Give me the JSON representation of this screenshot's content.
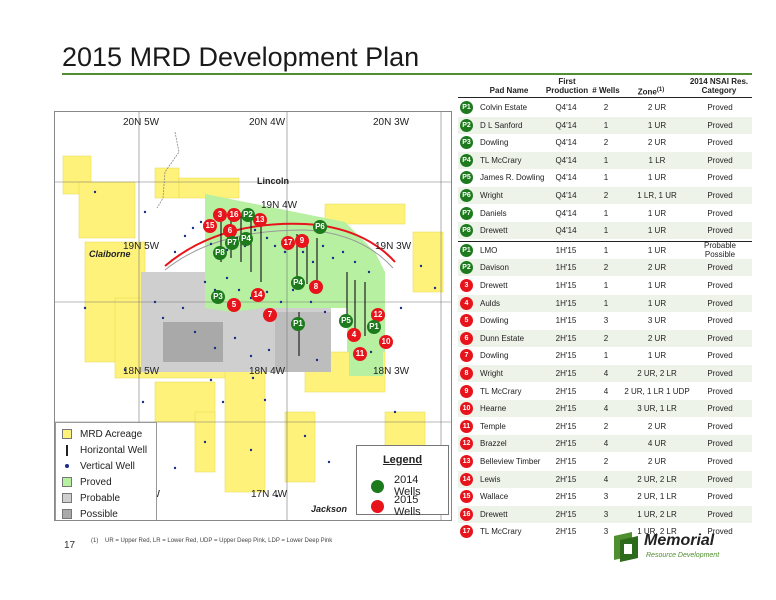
{
  "slide": {
    "title": "2015 MRD Development Plan",
    "page_number": "17",
    "footnote_marker": "(1)",
    "footnote": "UR = Upper Red, LR = Lower Red, UDP = Upper Deep Pink, LDP = Lower Deep Pink",
    "logo_name": "Memorial",
    "logo_sub": "Resource Development"
  },
  "map": {
    "township_labels": [
      "20N 5W",
      "20N 4W",
      "20N 3W",
      "19N 4W",
      "19N 5W",
      "19N 3W",
      "18N 5W",
      "18N 4W",
      "18N 3W",
      "5W",
      "17N 4W"
    ],
    "place_labels": [
      "Lincoln",
      "Claiborne",
      "Jackson"
    ],
    "legend_items": [
      "MRD Acreage",
      "Horizontal Well",
      "Vertical Well",
      "Proved",
      "Probable",
      "Possible"
    ],
    "well_legend_title": "Legend",
    "well_legend_items": [
      "2014 Wells",
      "2015 Wells"
    ],
    "colors": {
      "acreage": "#fff27a",
      "proved": "#b6f0a0",
      "probable": "#cfcfcf",
      "possible": "#a9a9a9",
      "red": "#e8141b",
      "green": "#1d7a1d"
    },
    "red_markers": [
      "3",
      "16",
      "13",
      "15",
      "6",
      "17",
      "9",
      "14",
      "5",
      "8",
      "7",
      "12",
      "4",
      "10",
      "11"
    ],
    "green_markers": [
      "P2",
      "P6",
      "P7",
      "P4",
      "P8",
      "P1",
      "P3",
      "P4",
      "P5",
      "P1",
      "P5"
    ]
  },
  "table": {
    "headers": {
      "pad_name": "Pad Name",
      "first_production": "First Production",
      "num_wells": "# Wells",
      "zone": "Zone",
      "zone_sup": "(1)",
      "category": "2014 NSAI Res. Category"
    },
    "rows_2014": [
      {
        "id": "P1",
        "name": "Colvin Estate",
        "fp": "Q4'14",
        "wells": "2",
        "zone": "2 UR",
        "cat": "Proved"
      },
      {
        "id": "P2",
        "name": "D L Sanford",
        "fp": "Q4'14",
        "wells": "1",
        "zone": "1 UR",
        "cat": "Proved"
      },
      {
        "id": "P3",
        "name": "Dowling",
        "fp": "Q4'14",
        "wells": "2",
        "zone": "2 UR",
        "cat": "Proved"
      },
      {
        "id": "P4",
        "name": "TL McCrary",
        "fp": "Q4'14",
        "wells": "1",
        "zone": "1 LR",
        "cat": "Proved"
      },
      {
        "id": "P5",
        "name": "James R. Dowling",
        "fp": "Q4'14",
        "wells": "1",
        "zone": "1 UR",
        "cat": "Proved"
      },
      {
        "id": "P6",
        "name": "Wright",
        "fp": "Q4'14",
        "wells": "2",
        "zone": "1 LR, 1 UR",
        "cat": "Proved"
      },
      {
        "id": "P7",
        "name": "Daniels",
        "fp": "Q4'14",
        "wells": "1",
        "zone": "1 UR",
        "cat": "Proved"
      },
      {
        "id": "P8",
        "name": "Drewett",
        "fp": "Q4'14",
        "wells": "1",
        "zone": "1 UR",
        "cat": "Proved"
      }
    ],
    "rows_2015": [
      {
        "id": "P1",
        "name": "LMO",
        "fp": "1H'15",
        "wells": "1",
        "zone": "1 UR",
        "cat": "Probable Possible"
      },
      {
        "id": "P2",
        "name": "Davison",
        "fp": "1H'15",
        "wells": "2",
        "zone": "2 UR",
        "cat": "Proved"
      },
      {
        "id": "3",
        "name": "Drewett",
        "fp": "1H'15",
        "wells": "1",
        "zone": "1 UR",
        "cat": "Proved"
      },
      {
        "id": "4",
        "name": "Aulds",
        "fp": "1H'15",
        "wells": "1",
        "zone": "1 UR",
        "cat": "Proved"
      },
      {
        "id": "5",
        "name": "Dowling",
        "fp": "1H'15",
        "wells": "3",
        "zone": "3 UR",
        "cat": "Proved"
      },
      {
        "id": "6",
        "name": "Dunn Estate",
        "fp": "2H'15",
        "wells": "2",
        "zone": "2 UR",
        "cat": "Proved"
      },
      {
        "id": "7",
        "name": "Dowling",
        "fp": "2H'15",
        "wells": "1",
        "zone": "1 UR",
        "cat": "Proved"
      },
      {
        "id": "8",
        "name": "Wright",
        "fp": "2H'15",
        "wells": "4",
        "zone": "2 UR, 2 LR",
        "cat": "Proved"
      },
      {
        "id": "9",
        "name": "TL McCrary",
        "fp": "2H'15",
        "wells": "4",
        "zone": "2 UR, 1 LR 1 UDP",
        "cat": "Proved"
      },
      {
        "id": "10",
        "name": "Hearne",
        "fp": "2H'15",
        "wells": "4",
        "zone": "3 UR, 1 LR",
        "cat": "Proved"
      },
      {
        "id": "11",
        "name": "Temple",
        "fp": "2H'15",
        "wells": "2",
        "zone": "2 UR",
        "cat": "Proved"
      },
      {
        "id": "12",
        "name": "Brazzel",
        "fp": "2H'15",
        "wells": "4",
        "zone": "4 UR",
        "cat": "Proved"
      },
      {
        "id": "13",
        "name": "Belleview Timber",
        "fp": "2H'15",
        "wells": "2",
        "zone": "2 UR",
        "cat": "Proved"
      },
      {
        "id": "14",
        "name": "Lewis",
        "fp": "2H'15",
        "wells": "4",
        "zone": "2 UR, 2 LR",
        "cat": "Proved"
      },
      {
        "id": "15",
        "name": "Wallace",
        "fp": "2H'15",
        "wells": "3",
        "zone": "2 UR, 1 LR",
        "cat": "Proved"
      },
      {
        "id": "16",
        "name": "Drewett",
        "fp": "2H'15",
        "wells": "3",
        "zone": "1 UR, 2 LR",
        "cat": "Proved"
      },
      {
        "id": "17",
        "name": "TL McCrary",
        "fp": "2H'15",
        "wells": "3",
        "zone": "1 UR, 2 LR",
        "cat": "Proved"
      }
    ]
  }
}
